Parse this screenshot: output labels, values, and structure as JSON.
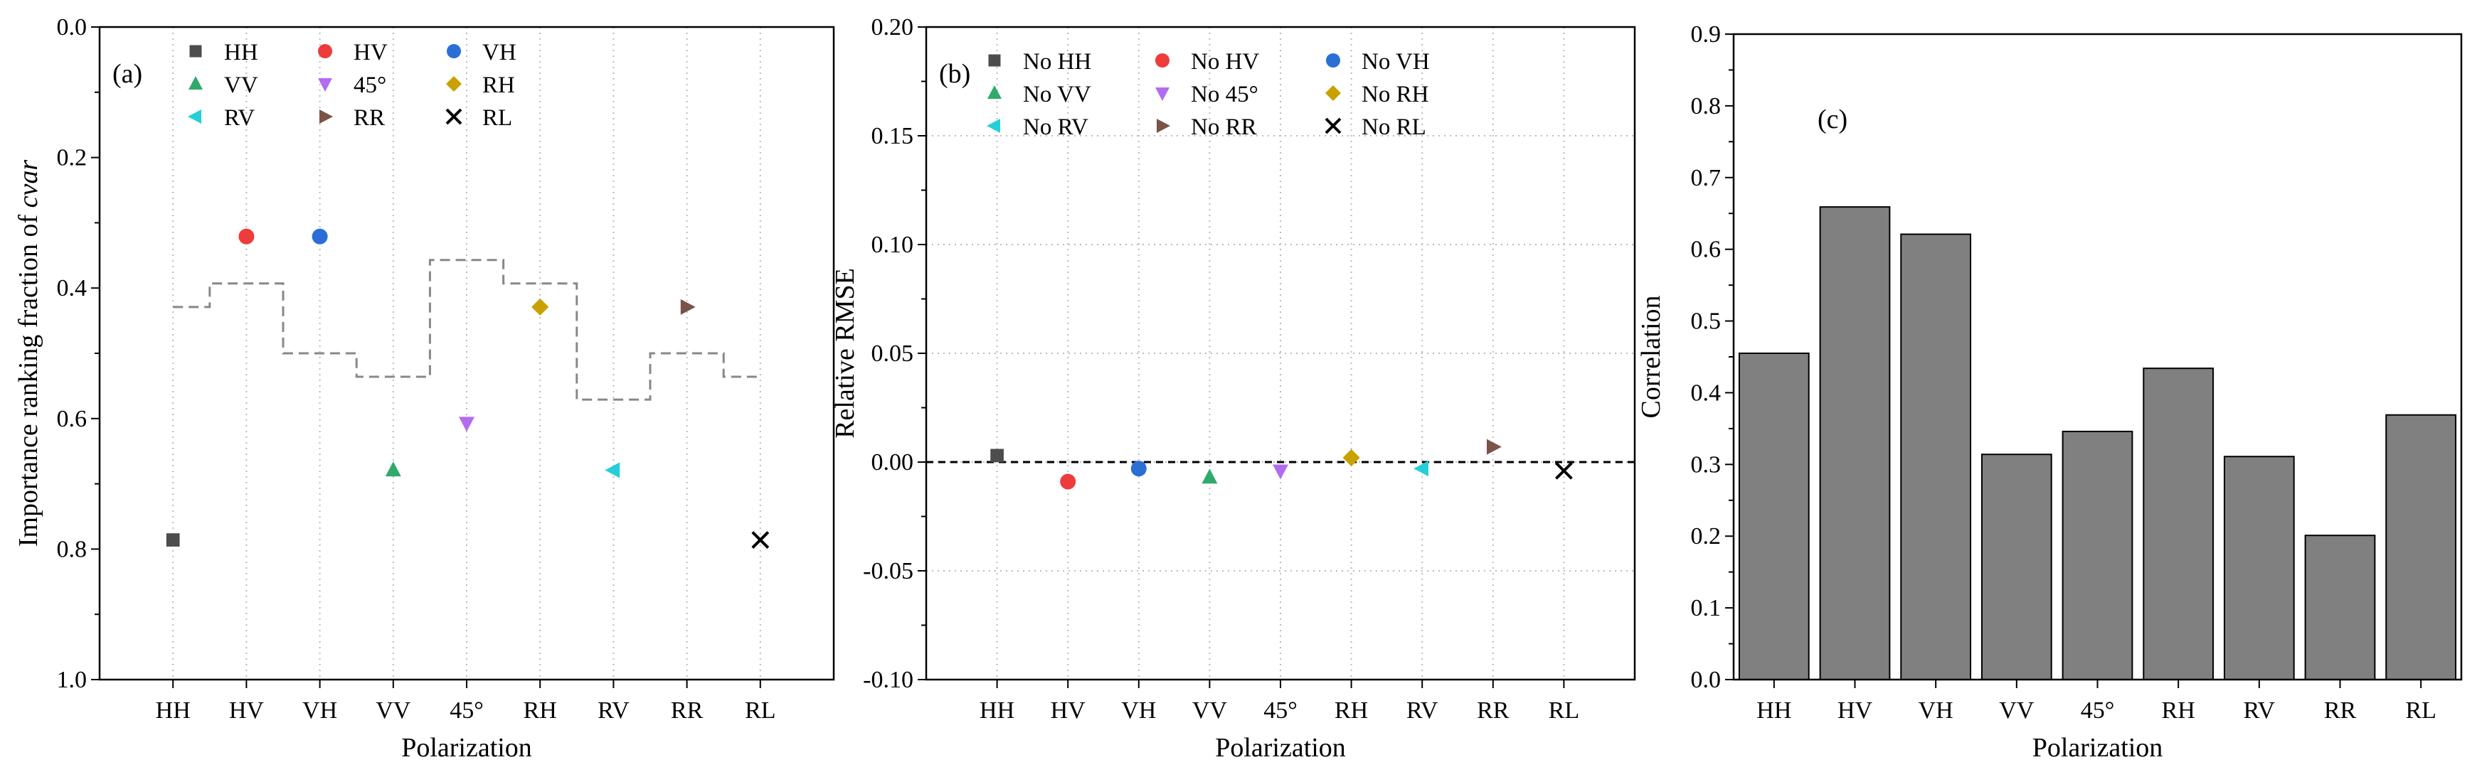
{
  "chart_data": [
    {
      "type": "scatter",
      "panel_label": "(a)",
      "xlabel": "Polarization",
      "ylabel_prefix": "Importance ranking fraction of ",
      "ylabel_var": "cvar",
      "categories": [
        "HH",
        "HV",
        "VH",
        "VV",
        "45°",
        "RH",
        "RV",
        "RR",
        "RL"
      ],
      "ylim": [
        0.0,
        1.0
      ],
      "y_inverted": true,
      "yticks": [
        0.0,
        0.2,
        0.4,
        0.6,
        0.8,
        1.0
      ],
      "ytick_labels": [
        "0.0",
        "0.2",
        "0.4",
        "0.6",
        "0.8",
        "1.0"
      ],
      "grid": "vertical dotted",
      "series": [
        {
          "name": "HH",
          "x": "HH",
          "value": 0.786,
          "marker": "square",
          "color": "#4d4d4d"
        },
        {
          "name": "HV",
          "x": "HV",
          "value": 0.321,
          "marker": "circle",
          "color": "#ee3b3b"
        },
        {
          "name": "VH",
          "x": "VH",
          "value": 0.321,
          "marker": "circle",
          "color": "#2b6fd6"
        },
        {
          "name": "VV",
          "x": "VV",
          "value": 0.679,
          "marker": "triangle-up",
          "color": "#2faa6a"
        },
        {
          "name": "45°",
          "x": "45°",
          "value": 0.607,
          "marker": "triangle-down",
          "color": "#b36cf0"
        },
        {
          "name": "RH",
          "x": "RH",
          "value": 0.429,
          "marker": "diamond",
          "color": "#c9a100"
        },
        {
          "name": "RV",
          "x": "RV",
          "value": 0.679,
          "marker": "triangle-left",
          "color": "#25cfd8"
        },
        {
          "name": "RR",
          "x": "RR",
          "value": 0.429,
          "marker": "triangle-right",
          "color": "#7b5349"
        },
        {
          "name": "RL",
          "x": "RL",
          "value": 0.786,
          "marker": "cross",
          "color": "#000000"
        }
      ],
      "step_line": {
        "style": "dashed",
        "color": "#888888",
        "x_positions": [
          0.0,
          0.5,
          1.5,
          2.5,
          3.5,
          4.5,
          5.5,
          6.5,
          7.5,
          8.0
        ],
        "levels": [
          0.429,
          0.393,
          0.5,
          0.536,
          0.357,
          0.393,
          0.571,
          0.5,
          0.536
        ]
      },
      "legend": {
        "position": "top",
        "columns": 3
      }
    },
    {
      "type": "scatter",
      "panel_label": "(b)",
      "xlabel": "Polarization",
      "ylabel": "Relative RMSE",
      "categories": [
        "HH",
        "HV",
        "VH",
        "VV",
        "45°",
        "RH",
        "RV",
        "RR",
        "RL"
      ],
      "ylim": [
        -0.1,
        0.2
      ],
      "yticks": [
        -0.1,
        -0.05,
        0.0,
        0.05,
        0.1,
        0.15,
        0.2
      ],
      "ytick_labels": [
        "-0.10",
        "-0.05",
        "0.00",
        "0.05",
        "0.10",
        "0.15",
        "0.20"
      ],
      "grid": "dotted",
      "reference_line": {
        "y": 0.0,
        "style": "dashed",
        "color": "#000000"
      },
      "series": [
        {
          "name": "No HH",
          "x": "HH",
          "value": 0.003,
          "marker": "square",
          "color": "#4d4d4d"
        },
        {
          "name": "No HV",
          "x": "HV",
          "value": -0.009,
          "marker": "circle",
          "color": "#ee3b3b"
        },
        {
          "name": "No VH",
          "x": "VH",
          "value": -0.003,
          "marker": "circle",
          "color": "#2b6fd6"
        },
        {
          "name": "No VV",
          "x": "VV",
          "value": -0.007,
          "marker": "triangle-up",
          "color": "#2faa6a"
        },
        {
          "name": "No 45°",
          "x": "45°",
          "value": -0.004,
          "marker": "triangle-down",
          "color": "#b36cf0"
        },
        {
          "name": "No RH",
          "x": "RH",
          "value": 0.002,
          "marker": "diamond",
          "color": "#c9a100"
        },
        {
          "name": "No RV",
          "x": "RV",
          "value": -0.003,
          "marker": "triangle-left",
          "color": "#25cfd8"
        },
        {
          "name": "No RR",
          "x": "RR",
          "value": 0.007,
          "marker": "triangle-right",
          "color": "#7b5349"
        },
        {
          "name": "No RL",
          "x": "RL",
          "value": -0.004,
          "marker": "cross",
          "color": "#000000"
        }
      ],
      "legend": {
        "position": "top",
        "columns": 3
      }
    },
    {
      "type": "bar",
      "panel_label": "(c)",
      "xlabel": "Polarization",
      "ylabel": "Correlation",
      "categories": [
        "HH",
        "HV",
        "VH",
        "VV",
        "45°",
        "RH",
        "RV",
        "RR",
        "RL"
      ],
      "values": [
        0.455,
        0.659,
        0.621,
        0.314,
        0.346,
        0.434,
        0.311,
        0.201,
        0.369
      ],
      "ylim": [
        0.0,
        0.9
      ],
      "yticks": [
        0.0,
        0.1,
        0.2,
        0.3,
        0.4,
        0.5,
        0.6,
        0.7,
        0.8,
        0.9
      ],
      "ytick_labels": [
        "0.0",
        "0.1",
        "0.2",
        "0.3",
        "0.4",
        "0.5",
        "0.6",
        "0.7",
        "0.8",
        "0.9"
      ],
      "bar_color": "#808080",
      "edge_color": "#000000",
      "grid": "none"
    }
  ]
}
